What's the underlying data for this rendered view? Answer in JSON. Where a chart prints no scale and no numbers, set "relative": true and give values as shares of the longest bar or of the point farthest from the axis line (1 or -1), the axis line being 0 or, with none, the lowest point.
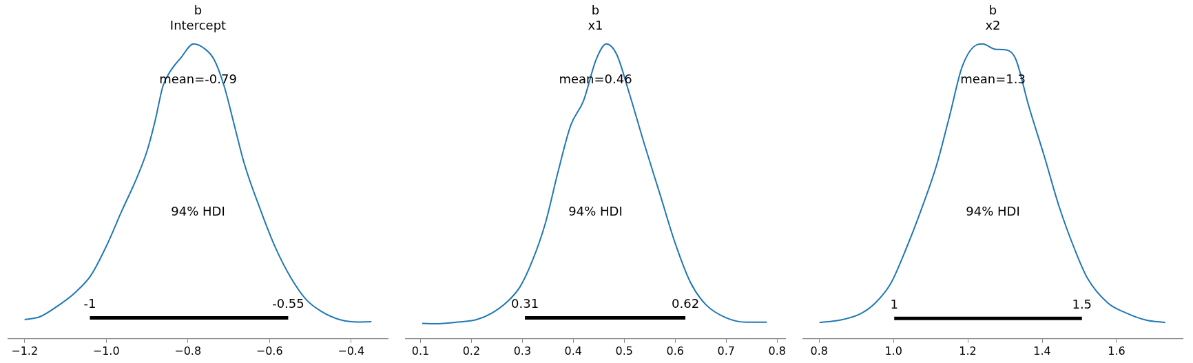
{
  "chart_data": [
    {
      "type": "line",
      "title": "b",
      "subtitle": "Intercept",
      "relative": true,
      "xlim": [
        -1.24,
        -0.31
      ],
      "xticks": [
        {
          "value": -1.2,
          "label": "−1.2"
        },
        {
          "value": -1.0,
          "label": "−1.0"
        },
        {
          "value": -0.8,
          "label": "−0.8"
        },
        {
          "value": -0.6,
          "label": "−0.6"
        },
        {
          "value": -0.4,
          "label": "−0.4"
        }
      ],
      "series": [
        {
          "color": "#1f77b4",
          "x": [
            -1.2,
            -1.162,
            -1.118,
            -1.075,
            -1.037,
            -0.999,
            -0.962,
            -0.924,
            -0.899,
            -0.88,
            -0.861,
            -0.843,
            -0.817,
            -0.786,
            -0.761,
            -0.736,
            -0.711,
            -0.686,
            -0.661,
            -0.623,
            -0.585,
            -0.548,
            -0.51,
            -0.472,
            -0.428,
            -0.385,
            -0.35
          ],
          "values": [
            0.065,
            0.075,
            0.112,
            0.158,
            0.216,
            0.316,
            0.433,
            0.549,
            0.641,
            0.74,
            0.857,
            0.907,
            0.953,
            1.0,
            0.986,
            0.948,
            0.857,
            0.724,
            0.591,
            0.441,
            0.308,
            0.208,
            0.133,
            0.092,
            0.065,
            0.057,
            0.058
          ]
        },
        {
          "color": "#000000",
          "x": [
            -1.04,
            -0.554
          ],
          "values": [
            0.071,
            0.071
          ]
        }
      ],
      "annotations": [
        "mean=-0.79",
        "94% HDI",
        "-1",
        "-0.55"
      ]
    },
    {
      "type": "line",
      "title": "b",
      "subtitle": "x1",
      "relative": true,
      "xlim": [
        0.071,
        0.816
      ],
      "xticks": [
        0.1,
        0.2,
        0.3,
        0.4,
        0.5,
        0.6,
        0.7,
        0.8
      ],
      "series": [
        {
          "color": "#1f77b4",
          "x": [
            0.1035,
            0.13,
            0.17,
            0.21,
            0.24,
            0.27,
            0.295,
            0.32,
            0.345,
            0.37,
            0.395,
            0.42,
            0.445,
            0.465,
            0.485,
            0.51,
            0.54,
            0.57,
            0.6,
            0.63,
            0.66,
            0.7,
            0.74,
            0.78
          ],
          "values": [
            0.052,
            0.051,
            0.056,
            0.065,
            0.087,
            0.125,
            0.175,
            0.266,
            0.391,
            0.566,
            0.724,
            0.807,
            0.948,
            1.0,
            0.965,
            0.832,
            0.657,
            0.491,
            0.324,
            0.191,
            0.116,
            0.071,
            0.056,
            0.056
          ]
        },
        {
          "color": "#000000",
          "x": [
            0.305,
            0.62
          ],
          "values": [
            0.071,
            0.071
          ]
        }
      ],
      "annotations": [
        "mean=0.46",
        "94% HDI",
        "0.31",
        "0.62"
      ]
    },
    {
      "type": "line",
      "title": "b",
      "subtitle": "x2",
      "relative": true,
      "xlim": [
        0.757,
        1.778
      ],
      "xticks": [
        0.8,
        {
          "value": 1.0,
          "label": "1.0"
        },
        1.2,
        1.4,
        1.6
      ],
      "series": [
        {
          "color": "#1f77b4",
          "x": [
            0.801,
            0.855,
            0.91,
            0.951,
            0.993,
            1.034,
            1.075,
            1.116,
            1.151,
            1.185,
            1.226,
            1.24,
            1.274,
            1.302,
            1.329,
            1.364,
            1.405,
            1.446,
            1.487,
            1.522,
            1.577,
            1.625,
            1.68,
            1.731
          ],
          "values": [
            0.055,
            0.063,
            0.084,
            0.121,
            0.188,
            0.305,
            0.439,
            0.589,
            0.756,
            0.923,
            0.998,
            1.0,
            0.982,
            0.98,
            0.948,
            0.789,
            0.622,
            0.447,
            0.305,
            0.205,
            0.121,
            0.088,
            0.063,
            0.055
          ]
        },
        {
          "color": "#000000",
          "x": [
            1.002,
            1.507
          ],
          "values": [
            0.069,
            0.069
          ]
        }
      ],
      "annotations": [
        "mean=1.3",
        "94% HDI",
        "1",
        "1.5"
      ]
    }
  ]
}
